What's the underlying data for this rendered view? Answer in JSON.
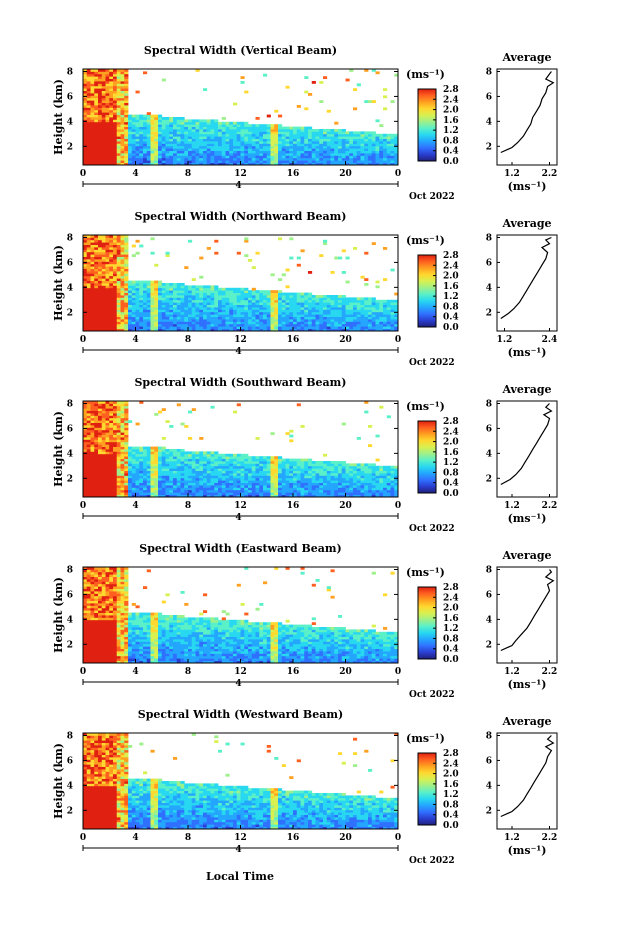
{
  "figure": {
    "xlabel": "Local Time",
    "date_label": "Oct 2022",
    "day_marker": "4",
    "colorbar_unit": "(ms⁻¹)",
    "avg_xlabel": "(ms⁻¹)",
    "avg_title": "Average",
    "colormap": [
      "#20207a",
      "#2a3fd0",
      "#3070ff",
      "#24a6ff",
      "#28d8f0",
      "#5af0c8",
      "#9ef08a",
      "#d8f050",
      "#ffd830",
      "#ffa020",
      "#ff6020",
      "#e02010"
    ]
  },
  "chart_data": [
    {
      "type": "heatmap",
      "title": "Spectral Width (Vertical Beam)",
      "ylabel": "Height (km)",
      "xlabel": "",
      "x_ticks": [
        "0",
        "4",
        "8",
        "12",
        "16",
        "20",
        "0"
      ],
      "y_ticks": [
        "2",
        "4",
        "6",
        "8"
      ],
      "xlim": [
        0,
        24
      ],
      "ylim": [
        0.5,
        8.2
      ],
      "colorbar": {
        "min": 0.0,
        "max": 2.8,
        "ticks": [
          "0.0",
          "0.4",
          "0.8",
          "1.2",
          "1.6",
          "2.0",
          "2.4",
          "2.8"
        ]
      },
      "average": {
        "title": "Average",
        "xticks": [
          "1.2",
          "2.2"
        ],
        "xlim": [
          0.8,
          2.4
        ],
        "yticks": [
          "2",
          "4",
          "6",
          "8"
        ],
        "profile": [
          [
            0.9,
            1.5
          ],
          [
            1.2,
            1.9
          ],
          [
            1.35,
            2.3
          ],
          [
            1.5,
            2.8
          ],
          [
            1.6,
            3.3
          ],
          [
            1.7,
            3.8
          ],
          [
            1.75,
            4.3
          ],
          [
            1.85,
            4.8
          ],
          [
            1.95,
            5.3
          ],
          [
            2.0,
            5.8
          ],
          [
            2.1,
            6.3
          ],
          [
            2.15,
            6.8
          ],
          [
            2.3,
            7.1
          ],
          [
            2.1,
            7.4
          ],
          [
            2.2,
            7.8
          ],
          [
            2.25,
            8.0
          ]
        ]
      }
    },
    {
      "type": "heatmap",
      "title": "Spectral Width (Northward Beam)",
      "ylabel": "Height (km)",
      "xlabel": "",
      "x_ticks": [
        "0",
        "4",
        "8",
        "12",
        "16",
        "20",
        "0"
      ],
      "y_ticks": [
        "2",
        "4",
        "6",
        "8"
      ],
      "xlim": [
        0,
        24
      ],
      "ylim": [
        0.5,
        8.2
      ],
      "colorbar": {
        "min": 0.0,
        "max": 2.8,
        "ticks": [
          "0.0",
          "0.4",
          "0.8",
          "1.2",
          "1.6",
          "2.0",
          "2.4",
          "2.8"
        ]
      },
      "average": {
        "title": "Average",
        "xticks": [
          "1.2",
          "2.4"
        ],
        "xlim": [
          1.0,
          2.6
        ],
        "yticks": [
          "2",
          "4",
          "6",
          "8"
        ],
        "profile": [
          [
            1.1,
            1.5
          ],
          [
            1.3,
            1.9
          ],
          [
            1.45,
            2.3
          ],
          [
            1.6,
            2.8
          ],
          [
            1.7,
            3.3
          ],
          [
            1.8,
            3.8
          ],
          [
            1.9,
            4.3
          ],
          [
            2.0,
            4.8
          ],
          [
            2.1,
            5.3
          ],
          [
            2.2,
            5.8
          ],
          [
            2.3,
            6.3
          ],
          [
            2.35,
            6.8
          ],
          [
            2.2,
            7.2
          ],
          [
            2.4,
            7.5
          ],
          [
            2.3,
            7.8
          ],
          [
            2.45,
            8.0
          ]
        ]
      }
    },
    {
      "type": "heatmap",
      "title": "Spectral Width (Southward Beam)",
      "ylabel": "Height (km)",
      "xlabel": "",
      "x_ticks": [
        "0",
        "4",
        "8",
        "12",
        "16",
        "20",
        "0"
      ],
      "y_ticks": [
        "2",
        "4",
        "6",
        "8"
      ],
      "xlim": [
        0,
        24
      ],
      "ylim": [
        0.5,
        8.2
      ],
      "colorbar": {
        "min": 0.0,
        "max": 2.8,
        "ticks": [
          "0.0",
          "0.4",
          "0.8",
          "1.2",
          "1.6",
          "2.0",
          "2.4",
          "2.8"
        ]
      },
      "average": {
        "title": "Average",
        "xticks": [
          "1.2",
          "2.2"
        ],
        "xlim": [
          0.8,
          2.4
        ],
        "yticks": [
          "2",
          "4",
          "6",
          "8"
        ],
        "profile": [
          [
            0.9,
            1.5
          ],
          [
            1.15,
            1.9
          ],
          [
            1.3,
            2.3
          ],
          [
            1.45,
            2.8
          ],
          [
            1.55,
            3.3
          ],
          [
            1.65,
            3.8
          ],
          [
            1.75,
            4.3
          ],
          [
            1.85,
            4.8
          ],
          [
            1.95,
            5.3
          ],
          [
            2.05,
            5.8
          ],
          [
            2.15,
            6.3
          ],
          [
            2.2,
            6.8
          ],
          [
            2.05,
            7.1
          ],
          [
            2.25,
            7.4
          ],
          [
            2.1,
            7.7
          ],
          [
            2.2,
            8.0
          ]
        ]
      }
    },
    {
      "type": "heatmap",
      "title": "Spectral Width (Eastward Beam)",
      "ylabel": "Height (km)",
      "xlabel": "",
      "x_ticks": [
        "0",
        "4",
        "8",
        "12",
        "16",
        "20",
        "0"
      ],
      "y_ticks": [
        "2",
        "4",
        "6",
        "8"
      ],
      "xlim": [
        0,
        24
      ],
      "ylim": [
        0.5,
        8.2
      ],
      "colorbar": {
        "min": 0.0,
        "max": 2.8,
        "ticks": [
          "0.0",
          "0.4",
          "0.8",
          "1.2",
          "1.6",
          "2.0",
          "2.4",
          "2.8"
        ]
      },
      "average": {
        "title": "Average",
        "xticks": [
          "1.2",
          "2.2"
        ],
        "xlim": [
          0.8,
          2.4
        ],
        "yticks": [
          "2",
          "4",
          "6",
          "8"
        ],
        "profile": [
          [
            0.9,
            1.5
          ],
          [
            1.2,
            1.9
          ],
          [
            1.3,
            2.3
          ],
          [
            1.45,
            2.8
          ],
          [
            1.6,
            3.3
          ],
          [
            1.7,
            3.8
          ],
          [
            1.8,
            4.3
          ],
          [
            1.9,
            4.8
          ],
          [
            2.0,
            5.3
          ],
          [
            2.1,
            5.8
          ],
          [
            2.2,
            6.3
          ],
          [
            2.15,
            6.8
          ],
          [
            2.3,
            7.1
          ],
          [
            2.1,
            7.4
          ],
          [
            2.25,
            7.8
          ],
          [
            2.2,
            8.0
          ]
        ]
      }
    },
    {
      "type": "heatmap",
      "title": "Spectral Width (Westward Beam)",
      "ylabel": "Height (km)",
      "xlabel": "Local Time",
      "x_ticks": [
        "0",
        "4",
        "8",
        "12",
        "16",
        "20",
        "0"
      ],
      "y_ticks": [
        "2",
        "4",
        "6",
        "8"
      ],
      "xlim": [
        0,
        24
      ],
      "ylim": [
        0.5,
        8.2
      ],
      "colorbar": {
        "min": 0.0,
        "max": 2.8,
        "ticks": [
          "0.0",
          "0.4",
          "0.8",
          "1.2",
          "1.6",
          "2.0",
          "2.4",
          "2.8"
        ]
      },
      "average": {
        "title": "Average",
        "xticks": [
          "1.2",
          "2.2"
        ],
        "xlim": [
          0.8,
          2.4
        ],
        "yticks": [
          "2",
          "4",
          "6",
          "8"
        ],
        "profile": [
          [
            0.9,
            1.5
          ],
          [
            1.2,
            1.9
          ],
          [
            1.35,
            2.3
          ],
          [
            1.5,
            2.8
          ],
          [
            1.6,
            3.3
          ],
          [
            1.7,
            3.8
          ],
          [
            1.8,
            4.3
          ],
          [
            1.9,
            4.8
          ],
          [
            2.0,
            5.3
          ],
          [
            2.1,
            5.8
          ],
          [
            2.15,
            6.3
          ],
          [
            2.25,
            6.8
          ],
          [
            2.1,
            7.1
          ],
          [
            2.3,
            7.4
          ],
          [
            2.15,
            7.7
          ],
          [
            2.25,
            8.0
          ]
        ]
      }
    }
  ]
}
